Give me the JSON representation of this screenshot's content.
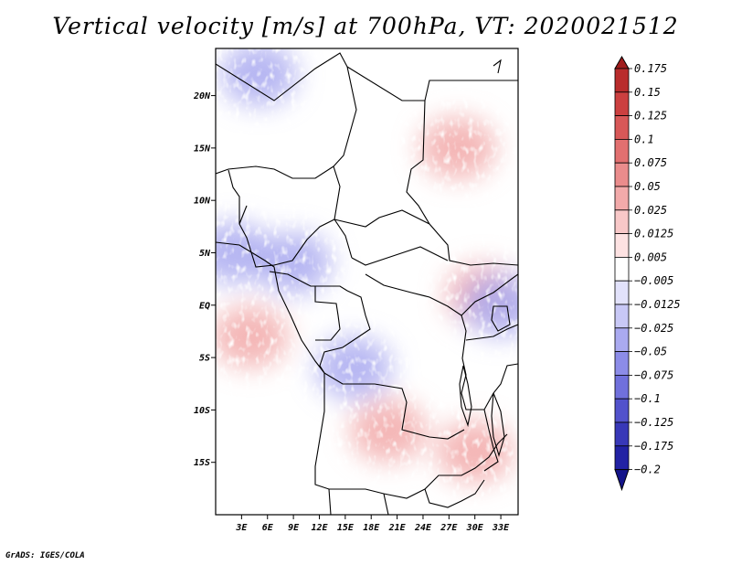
{
  "title": "Vertical velocity [m/s] at 700hPa, VT: 2020021512",
  "footer": "GrADS: IGES/COLA",
  "chart_data": {
    "type": "heatmap",
    "title": "Vertical velocity [m/s] at 700hPa, VT: 2020021512",
    "variable": "Vertical velocity",
    "units": "m/s",
    "level": "700hPa",
    "valid_time": "2020021512",
    "x_range": [
      0,
      35
    ],
    "y_range": [
      -20,
      24.5
    ],
    "x_ticks": [
      {
        "value": 3,
        "label": "3E"
      },
      {
        "value": 6,
        "label": "6E"
      },
      {
        "value": 9,
        "label": "9E"
      },
      {
        "value": 12,
        "label": "12E"
      },
      {
        "value": 15,
        "label": "15E"
      },
      {
        "value": 18,
        "label": "18E"
      },
      {
        "value": 21,
        "label": "21E"
      },
      {
        "value": 24,
        "label": "24E"
      },
      {
        "value": 27,
        "label": "27E"
      },
      {
        "value": 30,
        "label": "30E"
      },
      {
        "value": 33,
        "label": "33E"
      }
    ],
    "y_ticks": [
      {
        "value": 20,
        "label": "20N"
      },
      {
        "value": 15,
        "label": "15N"
      },
      {
        "value": 10,
        "label": "10N"
      },
      {
        "value": 5,
        "label": "5N"
      },
      {
        "value": 0,
        "label": "EQ"
      },
      {
        "value": -5,
        "label": "5S"
      },
      {
        "value": -10,
        "label": "10S"
      },
      {
        "value": -15,
        "label": "15S"
      }
    ],
    "colorbar": {
      "orientation": "vertical",
      "labels": [
        "0.175",
        "0.15",
        "0.125",
        "0.1",
        "0.075",
        "0.05",
        "0.025",
        "0.0125",
        "0.005",
        "−0.005",
        "−0.0125",
        "−0.025",
        "−0.05",
        "−0.075",
        "−0.1",
        "−0.125",
        "−0.175",
        "−0.2"
      ],
      "colors_top_to_bottom": [
        "#a01c1c",
        "#b92c2c",
        "#cc4040",
        "#d85858",
        "#e27070",
        "#ea8c8c",
        "#f2aaaa",
        "#f8c8c8",
        "#fde2e2",
        "#ffffff",
        "#e2e2fb",
        "#c8c8f6",
        "#aaaaf0",
        "#8c8ce8",
        "#7070dc",
        "#5252cc",
        "#3838b8",
        "#2222a4",
        "#14148a"
      ]
    },
    "field_regions": [
      {
        "lon": 20,
        "lat": -12,
        "sign": "positive"
      },
      {
        "lon": 30,
        "lat": -14,
        "sign": "positive"
      },
      {
        "lon": 4,
        "lat": -3,
        "sign": "positive"
      },
      {
        "lon": 31,
        "lat": 1,
        "sign": "positive"
      },
      {
        "lon": 2,
        "lat": 5,
        "sign": "negative"
      },
      {
        "lon": 9,
        "lat": 4,
        "sign": "negative"
      },
      {
        "lon": 16,
        "lat": -6,
        "sign": "negative"
      },
      {
        "lon": 33,
        "lat": 0,
        "sign": "negative"
      },
      {
        "lon": 5,
        "lat": 22,
        "sign": "negative"
      },
      {
        "lon": 28,
        "lat": 15,
        "sign": "positive"
      }
    ]
  }
}
